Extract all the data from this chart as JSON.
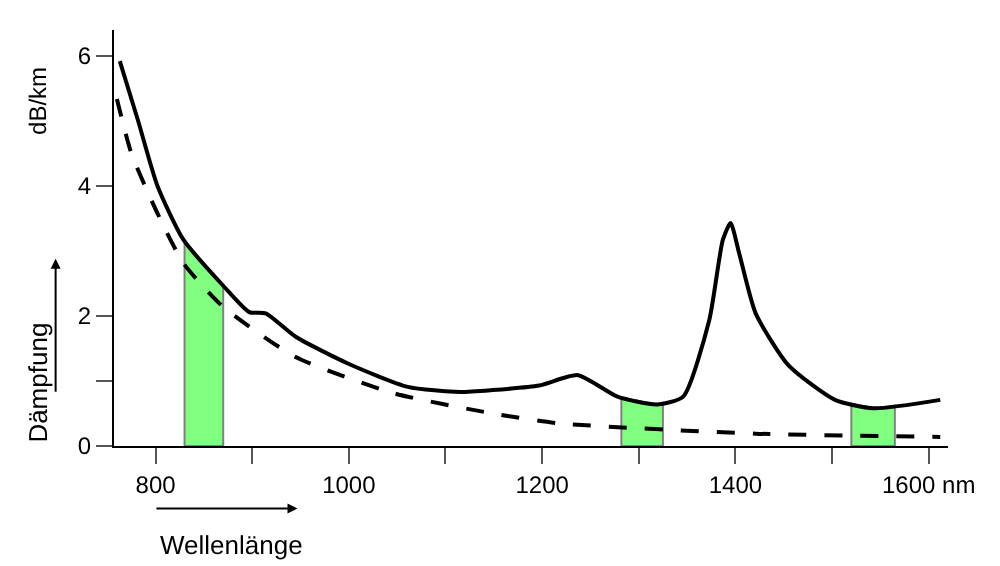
{
  "chart_data": {
    "type": "line",
    "xlabel": "Wellenlänge",
    "ylabel": "Dämpfung",
    "annotations": [
      "dB/km"
    ],
    "series": [
      {
        "color": "#000000",
        "line_style": "solid",
        "x": [
          763,
          782,
          802,
          829,
          871,
          897,
          914,
          945,
          999,
          1061,
          1115,
          1149,
          1197,
          1237,
          1278,
          1319,
          1346,
          1373,
          1387,
          1395,
          1404,
          1421,
          1455,
          1503,
          1543,
          1612
        ],
        "values": [
          5.92,
          5.0,
          4.0,
          3.17,
          2.45,
          2.06,
          2.04,
          1.68,
          1.27,
          0.91,
          0.83,
          0.86,
          0.93,
          1.09,
          0.76,
          0.64,
          0.76,
          1.94,
          3.17,
          3.43,
          2.96,
          2.04,
          1.24,
          0.71,
          0.58,
          0.71
        ]
      },
      {
        "color": "#000000",
        "line_style": "dashed",
        "x": [
          760,
          775,
          802,
          829,
          870,
          945,
          1047,
          1149,
          1217,
          1421,
          1612
        ],
        "values": [
          5.34,
          4.5,
          3.58,
          2.81,
          2.14,
          1.37,
          0.81,
          0.5,
          0.35,
          0.19,
          0.14
        ]
      }
    ],
    "bands": [
      {
        "axis": "x",
        "from": 830,
        "to": 870,
        "color": "#80ff80"
      },
      {
        "axis": "x",
        "from": 1282,
        "to": 1325,
        "color": "#80ff80"
      },
      {
        "axis": "x",
        "from": 1520,
        "to": 1565,
        "color": "#80ff80"
      }
    ],
    "xlim": [
      757,
      1620
    ],
    "ylim": [
      0,
      6.4
    ],
    "xticks": [
      800,
      {
        "value": 900,
        "label": null
      },
      1000,
      {
        "value": 1100,
        "label": null
      },
      1200,
      {
        "value": 1300,
        "label": null
      },
      1400,
      {
        "value": 1500,
        "label": null
      },
      {
        "value": 1600,
        "label": "1600 nm"
      }
    ],
    "yticks": [
      0,
      {
        "value": 1,
        "label": null
      },
      2,
      4,
      6
    ],
    "marker": "none"
  }
}
